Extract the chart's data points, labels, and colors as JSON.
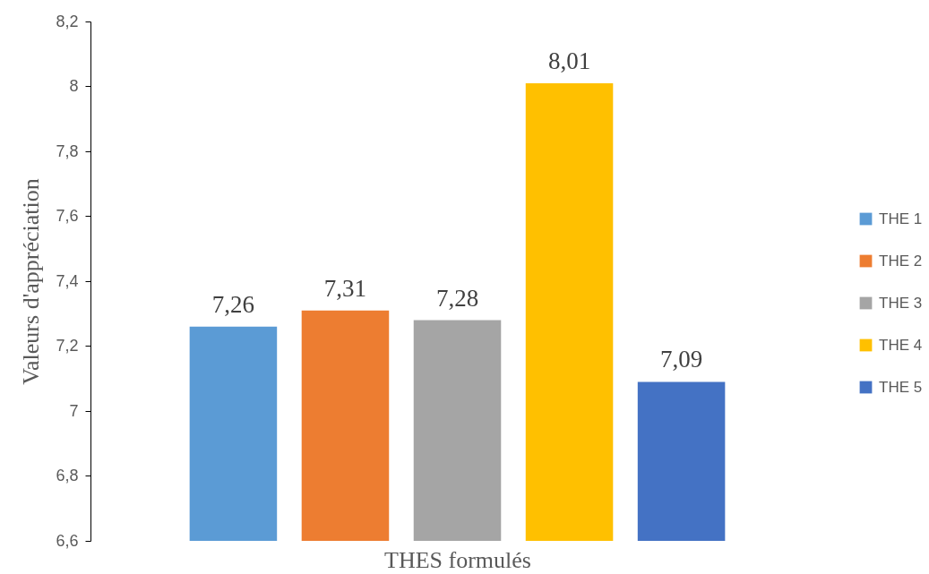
{
  "chart_data": {
    "type": "bar",
    "xlabel": "THES formulés",
    "ylabel": "Valeurs d'appréciation",
    "categories": [
      null
    ],
    "series": [
      {
        "name": "THE 1",
        "color": "#5b9bd5",
        "values": [
          7.26
        ],
        "value_labels": [
          "7,26"
        ]
      },
      {
        "name": "THE 2",
        "color": "#ed7d31",
        "values": [
          7.31
        ],
        "value_labels": [
          "7,31"
        ]
      },
      {
        "name": "THE 3",
        "color": "#a5a5a5",
        "values": [
          7.28
        ],
        "value_labels": [
          "7,28"
        ]
      },
      {
        "name": "THE 4",
        "color": "#ffc000",
        "values": [
          8.01
        ],
        "value_labels": [
          "8,01"
        ]
      },
      {
        "name": "THE 5",
        "color": "#4472c4",
        "values": [
          7.09
        ],
        "value_labels": [
          "7,09"
        ]
      }
    ],
    "ylim": [
      6.6,
      8.2
    ],
    "yticks": [
      {
        "value": 6.6,
        "label": "6,6"
      },
      {
        "value": 6.8,
        "label": "6,8"
      },
      7,
      {
        "value": 7.2,
        "label": "7,2"
      },
      {
        "value": 7.4,
        "label": "7,4"
      },
      {
        "value": 7.6,
        "label": "7,6"
      },
      {
        "value": 7.8,
        "label": "7,8"
      },
      8,
      {
        "value": 8.2,
        "label": "8,2"
      }
    ],
    "legend": "right",
    "tick_labels": "y"
  }
}
